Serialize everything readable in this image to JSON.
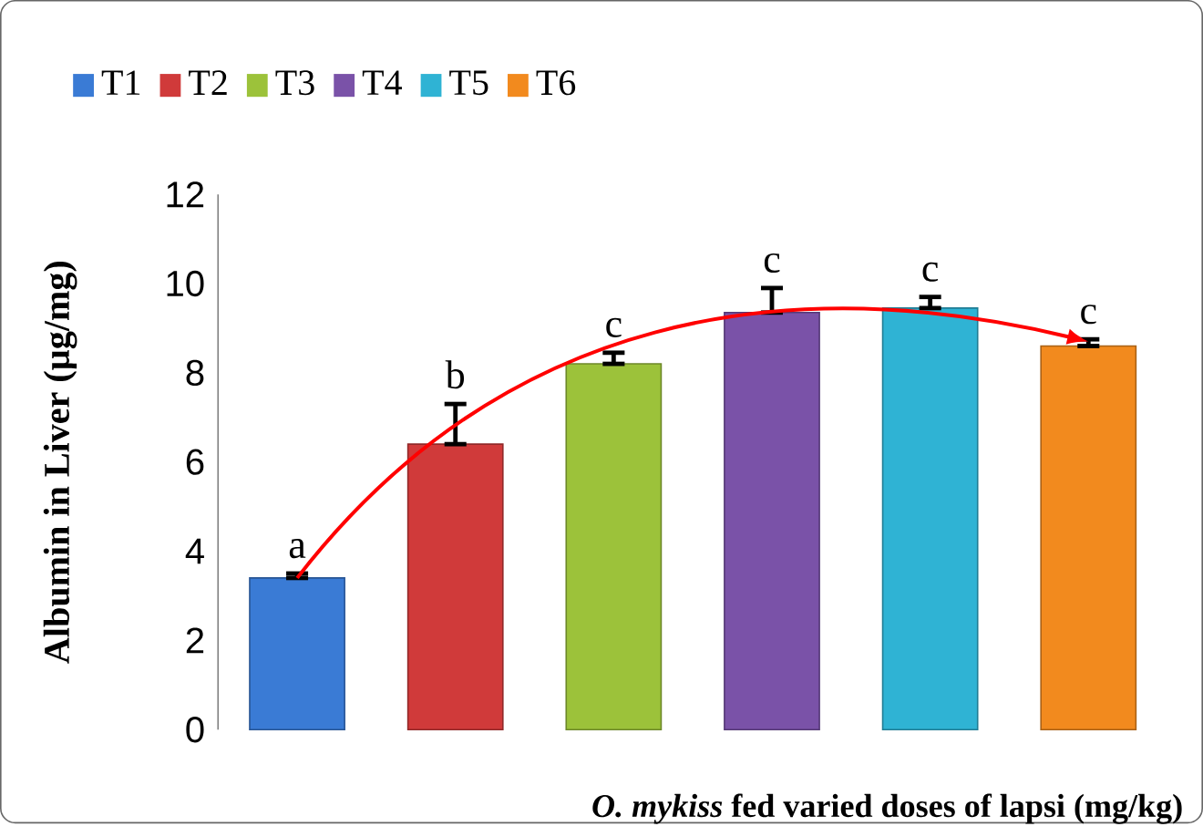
{
  "chart_data": {
    "type": "bar",
    "xlabel": "*O. mykiss* fed varied doses of lapsi (mg/kg)",
    "ylabel": "Albumin in Liver (µg/mg)",
    "categories": [
      null,
      null,
      null,
      null,
      null,
      null
    ],
    "stacked": true,
    "series": [
      {
        "name": "T1",
        "color": "#3a7bd5",
        "values": [
          3.4,
          null,
          null,
          null,
          null,
          null
        ],
        "errors": [
          [
            3.4,
            3.5
          ],
          null,
          null,
          null,
          null,
          null
        ]
      },
      {
        "name": "T2",
        "color": "#d03a3a",
        "values": [
          null,
          6.4,
          null,
          null,
          null,
          null
        ],
        "errors": [
          null,
          [
            6.4,
            7.3
          ],
          null,
          null,
          null,
          null
        ]
      },
      {
        "name": "T3",
        "color": "#9cc23a",
        "values": [
          null,
          null,
          8.2,
          null,
          null,
          null
        ],
        "errors": [
          null,
          null,
          [
            8.2,
            8.45
          ],
          null,
          null,
          null
        ]
      },
      {
        "name": "T4",
        "color": "#7a52a8",
        "values": [
          null,
          null,
          null,
          9.35,
          null,
          null
        ],
        "errors": [
          null,
          null,
          null,
          [
            9.35,
            9.9
          ],
          null,
          null
        ]
      },
      {
        "name": "T5",
        "color": "#2fb3d4",
        "values": [
          null,
          null,
          null,
          null,
          9.45,
          null
        ],
        "errors": [
          null,
          null,
          null,
          null,
          [
            9.45,
            9.7
          ],
          null
        ]
      },
      {
        "name": "T6",
        "color": "#f28a1e",
        "values": [
          null,
          null,
          null,
          null,
          null,
          8.6
        ],
        "errors": [
          null,
          null,
          null,
          null,
          null,
          [
            8.6,
            8.75
          ]
        ]
      }
    ],
    "annotations": [
      "a",
      "b",
      "c",
      "c",
      "c",
      "c"
    ],
    "ylim": [
      0,
      12
    ],
    "yticks": [
      0,
      2,
      4,
      6,
      8,
      10,
      12
    ],
    "grid": false,
    "legend": "top left"
  }
}
